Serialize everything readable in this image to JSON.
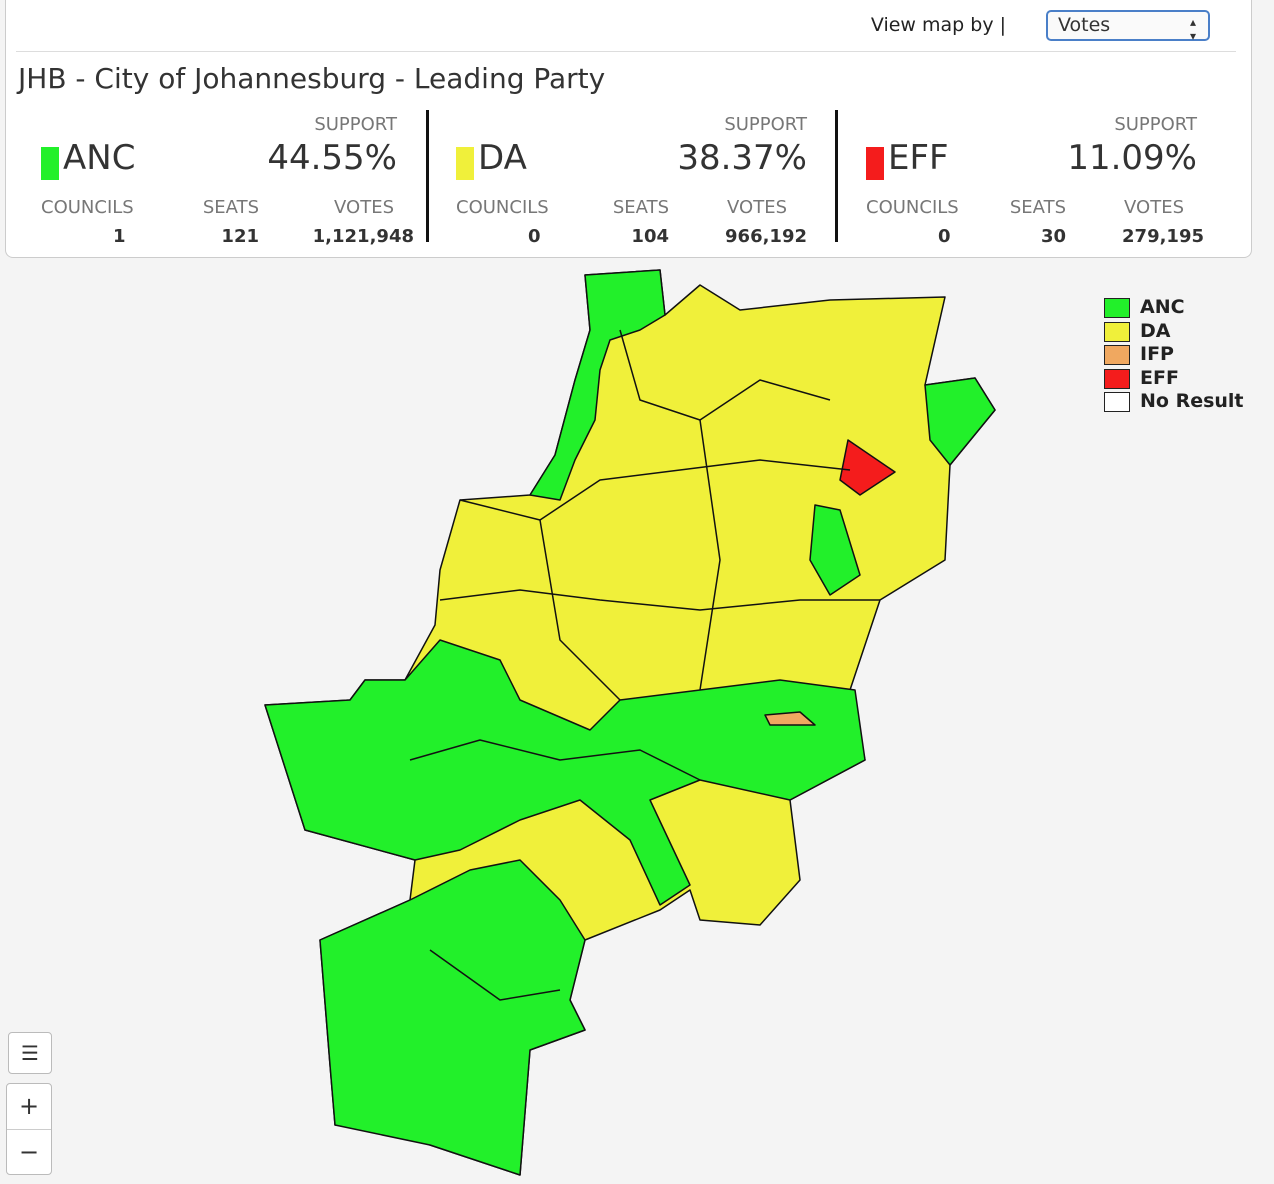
{
  "controls": {
    "view_label": "View map by |",
    "select_value": "Votes"
  },
  "header": {
    "title": "JHB - City of Johannesburg - Leading Party"
  },
  "parties": [
    {
      "name": "ANC",
      "color": "#22f02a",
      "support_label": "SUPPORT",
      "support": "44.55%",
      "councils_label": "COUNCILS",
      "councils": "1",
      "seats_label": "SEATS",
      "seats": "121",
      "votes_label": "VOTES",
      "votes": "1,121,948"
    },
    {
      "name": "DA",
      "color": "#f0f03a",
      "support_label": "SUPPORT",
      "support": "38.37%",
      "councils_label": "COUNCILS",
      "councils": "0",
      "seats_label": "SEATS",
      "seats": "104",
      "votes_label": "VOTES",
      "votes": "966,192"
    },
    {
      "name": "EFF",
      "color": "#f41c1c",
      "support_label": "SUPPORT",
      "support": "11.09%",
      "councils_label": "COUNCILS",
      "councils": "0",
      "seats_label": "SEATS",
      "seats": "30",
      "votes_label": "VOTES",
      "votes": "279,195"
    }
  ],
  "legend": [
    {
      "label": "ANC",
      "color": "#22f02a"
    },
    {
      "label": "DA",
      "color": "#f0f03a"
    },
    {
      "label": "IFP",
      "color": "#f0a860"
    },
    {
      "label": "EFF",
      "color": "#f41c1c"
    },
    {
      "label": "No Result",
      "color": "#ffffff"
    }
  ],
  "zoom": {
    "in": "+",
    "out": "−"
  }
}
